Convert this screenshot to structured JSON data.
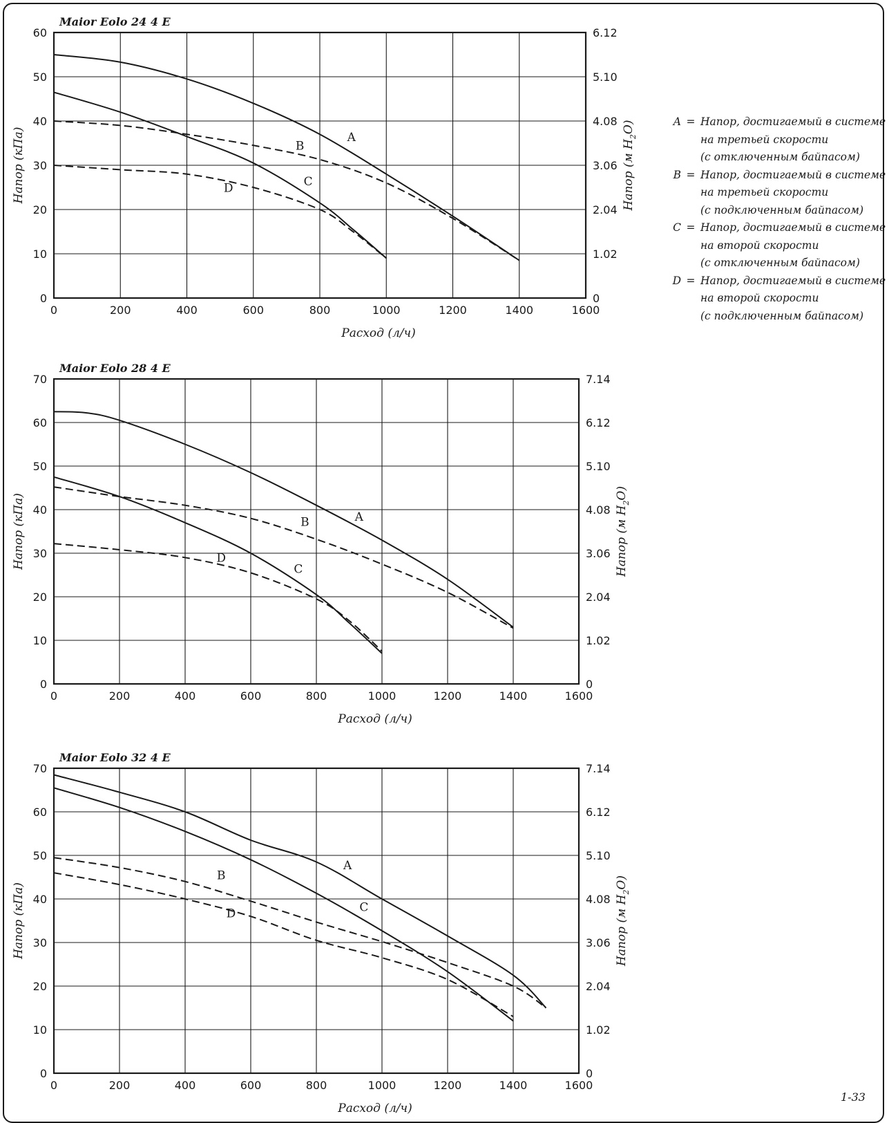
{
  "chart_data": [
    {
      "type": "line",
      "title": "Maior Eolo 24 4 E",
      "xlabel": "Расход (л/ч)",
      "ylabel": "Напор (кПа)",
      "ylabel_right": "Напор (м H2O)",
      "xlim": [
        0,
        1600
      ],
      "ylim": [
        0,
        60
      ],
      "xticks": [
        "0",
        "200",
        "400",
        "600",
        "800",
        "1000",
        "1200",
        "1400",
        "1600"
      ],
      "yticks": [
        "0",
        "10",
        "20",
        "30",
        "40",
        "50",
        "60"
      ],
      "yticks_right": [
        "0",
        "1.02",
        "2.04",
        "3.06",
        "4.08",
        "5.10",
        "6.12"
      ],
      "grid": true,
      "series": [
        {
          "name": "A",
          "style": "solid",
          "x": [
            0,
            200,
            400,
            600,
            800,
            1000,
            1200,
            1400
          ],
          "y": [
            55,
            53.3,
            49.5,
            44,
            37,
            28,
            18.5,
            8.5
          ]
        },
        {
          "name": "B",
          "style": "dashed",
          "x": [
            0,
            200,
            400,
            600,
            800,
            1000,
            1200,
            1400
          ],
          "y": [
            40,
            39,
            37,
            34.5,
            31.3,
            26,
            18,
            8.5
          ]
        },
        {
          "name": "C",
          "style": "solid",
          "x": [
            0,
            200,
            400,
            600,
            800,
            900,
            1000
          ],
          "y": [
            46.5,
            42,
            36.5,
            30.5,
            21.5,
            15.5,
            9
          ]
        },
        {
          "name": "D",
          "style": "dashed",
          "x": [
            0,
            200,
            400,
            600,
            800,
            900,
            1000
          ],
          "y": [
            30,
            29,
            28,
            25,
            20,
            15,
            9
          ]
        }
      ],
      "labels": [
        {
          "text": "A",
          "x": 895,
          "y": 35.5
        },
        {
          "text": "B",
          "x": 740,
          "y": 33.5
        },
        {
          "text": "C",
          "x": 765,
          "y": 25.5
        },
        {
          "text": "D",
          "x": 525,
          "y": 24
        }
      ]
    },
    {
      "type": "line",
      "title": "Maior Eolo 28 4 E",
      "xlabel": "Расход (л/ч)",
      "ylabel": "Напор (кПа)",
      "ylabel_right": "Напор (м H2O)",
      "xlim": [
        0,
        1600
      ],
      "ylim": [
        0,
        70
      ],
      "xticks": [
        "0",
        "200",
        "400",
        "600",
        "800",
        "1000",
        "1200",
        "1400",
        "1600"
      ],
      "yticks": [
        "0",
        "10",
        "20",
        "30",
        "40",
        "50",
        "60",
        "70"
      ],
      "yticks_right": [
        "0",
        "1.02",
        "2.04",
        "3.06",
        "4.08",
        "5.10",
        "6.12",
        "7.14"
      ],
      "grid": true,
      "series": [
        {
          "name": "A",
          "style": "solid",
          "x": [
            0,
            100,
            200,
            400,
            600,
            800,
            1000,
            1200,
            1400
          ],
          "y": [
            62.5,
            62.2,
            60.5,
            55,
            48.5,
            41,
            33,
            24,
            13
          ]
        },
        {
          "name": "B",
          "style": "dashed",
          "x": [
            0,
            200,
            400,
            600,
            800,
            1000,
            1200,
            1400
          ],
          "y": [
            45.2,
            43,
            41,
            38,
            33.2,
            27.5,
            21,
            12.8
          ]
        },
        {
          "name": "C",
          "style": "solid",
          "x": [
            0,
            200,
            400,
            600,
            800,
            900,
            1000
          ],
          "y": [
            47.5,
            43,
            37,
            30,
            20.5,
            14,
            7
          ]
        },
        {
          "name": "D",
          "style": "dashed",
          "x": [
            0,
            200,
            400,
            600,
            800,
            900,
            1000
          ],
          "y": [
            32.2,
            30.8,
            29,
            25.5,
            19.5,
            14.5,
            7.5
          ]
        }
      ],
      "labels": [
        {
          "text": "A",
          "x": 930,
          "y": 37.5
        },
        {
          "text": "B",
          "x": 765,
          "y": 36.3
        },
        {
          "text": "C",
          "x": 745,
          "y": 25.5
        },
        {
          "text": "D",
          "x": 510,
          "y": 28
        }
      ]
    },
    {
      "type": "line",
      "title": "Maior Eolo 32 4 E",
      "xlabel": "Расход (л/ч)",
      "ylabel": "Напор (кПа)",
      "ylabel_right": "Напор (м H2O)",
      "xlim": [
        0,
        1600
      ],
      "ylim": [
        0,
        70
      ],
      "xticks": [
        "0",
        "200",
        "400",
        "600",
        "800",
        "1000",
        "1200",
        "1400",
        "1600"
      ],
      "yticks": [
        "0",
        "10",
        "20",
        "30",
        "40",
        "50",
        "60",
        "70"
      ],
      "yticks_right": [
        "0",
        "1.02",
        "2.04",
        "3.06",
        "4.08",
        "5.10",
        "6.12",
        "7.14"
      ],
      "grid": true,
      "series": [
        {
          "name": "A",
          "style": "solid",
          "x": [
            0,
            200,
            400,
            600,
            800,
            1000,
            1200,
            1400,
            1500
          ],
          "y": [
            68.5,
            64.5,
            60,
            53.5,
            48.5,
            40,
            31.5,
            22.5,
            15
          ]
        },
        {
          "name": "B",
          "style": "dashed",
          "x": [
            0,
            200,
            400,
            600,
            800,
            1000,
            1200,
            1400,
            1500
          ],
          "y": [
            49.5,
            47.2,
            44,
            39.5,
            34.7,
            30.2,
            25.4,
            20,
            15
          ]
        },
        {
          "name": "C",
          "style": "solid",
          "x": [
            0,
            200,
            400,
            600,
            800,
            1000,
            1200,
            1400
          ],
          "y": [
            65.5,
            61,
            55.5,
            49,
            41.3,
            32.7,
            23.3,
            12
          ]
        },
        {
          "name": "D",
          "style": "dashed",
          "x": [
            0,
            200,
            400,
            600,
            800,
            1000,
            1200,
            1400
          ],
          "y": [
            46,
            43.3,
            40,
            36,
            30.5,
            26.5,
            21.5,
            13
          ]
        }
      ],
      "labels": [
        {
          "text": "A",
          "x": 895,
          "y": 46.8
        },
        {
          "text": "B",
          "x": 510,
          "y": 44.5
        },
        {
          "text": "C",
          "x": 945,
          "y": 37.2
        },
        {
          "text": "D",
          "x": 540,
          "y": 35.8
        }
      ]
    }
  ],
  "legend": [
    {
      "key": "A",
      "eq": "=",
      "lines": [
        "Напор, достигаемый в системе",
        "на третьей скорости",
        "(с отключенным байпасом)"
      ]
    },
    {
      "key": "B",
      "eq": "=",
      "lines": [
        "Напор, достигаемый в системе",
        "на третьей скорости",
        "(с подключенным байпасом)"
      ]
    },
    {
      "key": "C",
      "eq": "=",
      "lines": [
        "Напор, достигаемый в системе",
        "на второй скорости",
        "(с отключенным байпасом)"
      ]
    },
    {
      "key": "D",
      "eq": "=",
      "lines": [
        "Напор, достигаемый в системе",
        "на второй скорости",
        "(с подключенным байпасом)"
      ]
    }
  ],
  "page_number": "1-33"
}
